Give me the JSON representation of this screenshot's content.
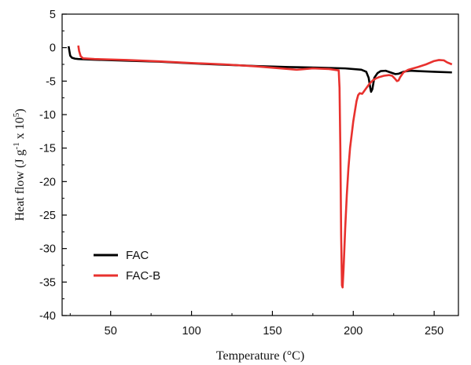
{
  "chart_data": {
    "type": "line",
    "title": "",
    "xlabel": "Temperature (°C)",
    "ylabel_main": "Heat flow (J g",
    "ylabel_sup1": "-1",
    "ylabel_mid": " x 10",
    "ylabel_sup2": "5",
    "ylabel_end": ")",
    "xlim": [
      20,
      265
    ],
    "ylim": [
      -40,
      5
    ],
    "xticks": [
      50,
      100,
      150,
      200,
      250
    ],
    "yticks": [
      5,
      0,
      -5,
      -10,
      -15,
      -20,
      -25,
      -30,
      -35,
      -40
    ],
    "grid": false,
    "legend_position": "bottom-left",
    "series": [
      {
        "name": "FAC",
        "color": "#000000",
        "points": [
          [
            24,
            0.2
          ],
          [
            25,
            -1.2
          ],
          [
            26,
            -1.5
          ],
          [
            28,
            -1.65
          ],
          [
            30,
            -1.7
          ],
          [
            40,
            -1.8
          ],
          [
            60,
            -1.95
          ],
          [
            80,
            -2.1
          ],
          [
            100,
            -2.35
          ],
          [
            120,
            -2.55
          ],
          [
            140,
            -2.75
          ],
          [
            160,
            -2.9
          ],
          [
            180,
            -3.0
          ],
          [
            195,
            -3.1
          ],
          [
            205,
            -3.3
          ],
          [
            208,
            -3.6
          ],
          [
            209.5,
            -4.5
          ],
          [
            210.5,
            -6.0
          ],
          [
            211,
            -6.6
          ],
          [
            211.8,
            -6.2
          ],
          [
            213,
            -4.5
          ],
          [
            215,
            -3.8
          ],
          [
            217,
            -3.5
          ],
          [
            220,
            -3.45
          ],
          [
            223,
            -3.7
          ],
          [
            226,
            -3.95
          ],
          [
            228,
            -3.9
          ],
          [
            231,
            -3.6
          ],
          [
            235,
            -3.45
          ],
          [
            240,
            -3.5
          ],
          [
            250,
            -3.6
          ],
          [
            261,
            -3.7
          ]
        ]
      },
      {
        "name": "FAC-B",
        "color": "#e8312e",
        "points": [
          [
            30,
            0.3
          ],
          [
            30.5,
            -0.5
          ],
          [
            31.5,
            -1.3
          ],
          [
            33,
            -1.6
          ],
          [
            40,
            -1.7
          ],
          [
            60,
            -1.85
          ],
          [
            80,
            -2.05
          ],
          [
            100,
            -2.3
          ],
          [
            120,
            -2.5
          ],
          [
            140,
            -2.8
          ],
          [
            160,
            -3.2
          ],
          [
            165,
            -3.3
          ],
          [
            175,
            -3.1
          ],
          [
            185,
            -3.2
          ],
          [
            191,
            -3.4
          ],
          [
            191.5,
            -6
          ],
          [
            192,
            -15
          ],
          [
            192.5,
            -28
          ],
          [
            193,
            -35.5
          ],
          [
            193.4,
            -35.8
          ],
          [
            194,
            -33
          ],
          [
            195,
            -27
          ],
          [
            196,
            -22
          ],
          [
            197,
            -18
          ],
          [
            198,
            -15
          ],
          [
            199,
            -13
          ],
          [
            200,
            -11
          ],
          [
            201,
            -9.5
          ],
          [
            202,
            -8
          ],
          [
            203,
            -7.1
          ],
          [
            204,
            -6.8
          ],
          [
            205.5,
            -6.9
          ],
          [
            207,
            -6.4
          ],
          [
            208.5,
            -5.9
          ],
          [
            210,
            -5.4
          ],
          [
            212,
            -4.9
          ],
          [
            214,
            -4.6
          ],
          [
            216,
            -4.4
          ],
          [
            219,
            -4.2
          ],
          [
            222,
            -4.1
          ],
          [
            224,
            -4.2
          ],
          [
            226,
            -4.7
          ],
          [
            227,
            -5.0
          ],
          [
            228,
            -4.9
          ],
          [
            229,
            -4.4
          ],
          [
            231,
            -3.7
          ],
          [
            234,
            -3.3
          ],
          [
            240,
            -2.9
          ],
          [
            245,
            -2.5
          ],
          [
            250,
            -2.0
          ],
          [
            253,
            -1.85
          ],
          [
            256,
            -1.9
          ],
          [
            258,
            -2.2
          ],
          [
            261,
            -2.5
          ]
        ]
      }
    ]
  }
}
